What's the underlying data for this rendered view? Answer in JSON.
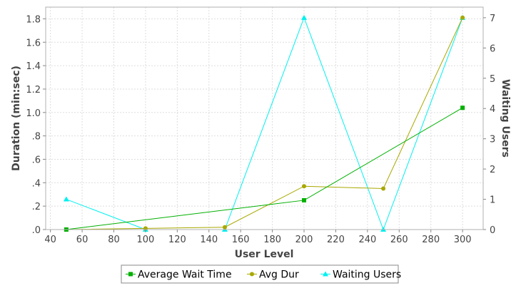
{
  "chart_data": {
    "type": "line",
    "xlabel": "User Level",
    "ylabel": "Duration (min:sec)",
    "y2label": "Waiting Users",
    "xlim": [
      37,
      313
    ],
    "ylim": [
      0,
      1.9
    ],
    "y2lim": [
      0,
      7.35
    ],
    "x_ticks": [
      40,
      60,
      80,
      100,
      120,
      140,
      160,
      180,
      200,
      220,
      240,
      260,
      280,
      300
    ],
    "x_tick_labels": [
      "40",
      "60",
      "80",
      "100",
      "120",
      "140",
      "160",
      "180",
      "200",
      "220",
      "240",
      "260",
      "280",
      "300"
    ],
    "y_ticks": [
      0,
      0.2,
      0.4,
      0.6,
      0.8,
      1.0,
      1.2,
      1.4,
      1.6,
      1.8
    ],
    "y_tick_labels": [
      ".0",
      ".2",
      ".4",
      ".6",
      ".8",
      "1.0",
      "1.2",
      "1.4",
      "1.6",
      "1.8"
    ],
    "y2_ticks": [
      0,
      1,
      2,
      3,
      4,
      5,
      6,
      7
    ],
    "y2_tick_labels": [
      "0",
      "1",
      "2",
      "3",
      "4",
      "5",
      "6",
      "7"
    ],
    "grid": true,
    "legend_position": "bottom",
    "series": [
      {
        "name": "Average Wait Time",
        "axis": "left",
        "marker": "square",
        "color": "#00b000",
        "x": [
          50,
          300
        ],
        "y": [
          0.0,
          1.04
        ],
        "points": [
          [
            50,
            0.0
          ],
          [
            200,
            0.25
          ],
          [
            300,
            1.04
          ]
        ]
      },
      {
        "name": "Avg Dur",
        "axis": "left",
        "marker": "circle",
        "color": "#a8a800",
        "points": [
          [
            50,
            0.0
          ],
          [
            100,
            0.01
          ],
          [
            150,
            0.02
          ],
          [
            200,
            0.37
          ],
          [
            250,
            0.35
          ],
          [
            300,
            1.81
          ]
        ]
      },
      {
        "name": "Waiting Users",
        "axis": "right",
        "marker": "triangle",
        "color": "#00f0f0",
        "points": [
          [
            50,
            1
          ],
          [
            100,
            0
          ],
          [
            150,
            0
          ],
          [
            200,
            7
          ],
          [
            250,
            0
          ],
          [
            300,
            7
          ]
        ]
      }
    ]
  }
}
